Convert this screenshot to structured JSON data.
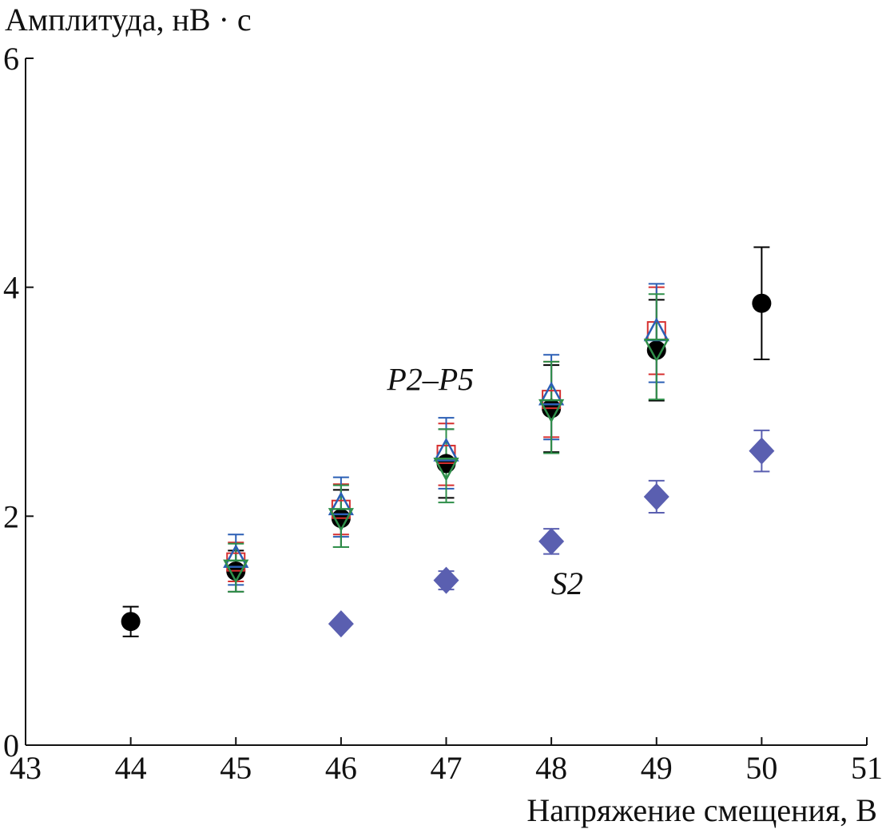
{
  "chart_data": {
    "type": "scatter",
    "title": "",
    "xlabel": "Напряжение смещения, В",
    "ylabel": "Амплитуда, нВ · с",
    "xlim": [
      43,
      51
    ],
    "ylim": [
      0,
      6
    ],
    "xticks": [
      "43",
      "44",
      "45",
      "46",
      "47",
      "48",
      "49",
      "50",
      "51"
    ],
    "yticks": [
      "0",
      "2",
      "4",
      "6"
    ],
    "grid": false,
    "annotations": [
      {
        "text": "P2–P5",
        "x": 46.85,
        "y": 3.1
      },
      {
        "text": "S2",
        "x": 48.15,
        "y": 1.32
      }
    ],
    "series": [
      {
        "marker": "circle",
        "color": "#000000",
        "points": [
          {
            "x": 44,
            "y": 1.08,
            "err": 0.13
          },
          {
            "x": 45,
            "y": 1.52,
            "err": 0.18
          },
          {
            "x": 46,
            "y": 1.98,
            "err": 0.25
          },
          {
            "x": 47,
            "y": 2.46,
            "err": 0.3
          },
          {
            "x": 48,
            "y": 2.94,
            "err": 0.38
          },
          {
            "x": 49,
            "y": 3.45,
            "err": 0.44
          },
          {
            "x": 50,
            "y": 3.86,
            "err": 0.49
          }
        ]
      },
      {
        "marker": "square",
        "color": "#d62f2f",
        "points": [
          {
            "x": 45,
            "y": 1.6,
            "err": 0.17
          },
          {
            "x": 46,
            "y": 2.06,
            "err": 0.22
          },
          {
            "x": 47,
            "y": 2.54,
            "err": 0.27
          },
          {
            "x": 48,
            "y": 3.02,
            "err": 0.33
          },
          {
            "x": 49,
            "y": 3.62,
            "err": 0.38
          }
        ]
      },
      {
        "marker": "triangle-up",
        "color": "#2b5fb5",
        "points": [
          {
            "x": 45,
            "y": 1.62,
            "err": 0.22
          },
          {
            "x": 46,
            "y": 2.08,
            "err": 0.26
          },
          {
            "x": 47,
            "y": 2.55,
            "err": 0.31
          },
          {
            "x": 48,
            "y": 3.04,
            "err": 0.37
          },
          {
            "x": 49,
            "y": 3.6,
            "err": 0.43
          }
        ]
      },
      {
        "marker": "triangle-down",
        "color": "#2f8f4a",
        "points": [
          {
            "x": 45,
            "y": 1.55,
            "err": 0.21
          },
          {
            "x": 46,
            "y": 2.0,
            "err": 0.27
          },
          {
            "x": 47,
            "y": 2.44,
            "err": 0.32
          },
          {
            "x": 48,
            "y": 2.95,
            "err": 0.4
          },
          {
            "x": 49,
            "y": 3.48,
            "err": 0.46
          }
        ]
      },
      {
        "marker": "diamond",
        "color": "#5a5fb0",
        "points": [
          {
            "x": 46,
            "y": 1.06,
            "err": 0.03
          },
          {
            "x": 47,
            "y": 1.44,
            "err": 0.08
          },
          {
            "x": 48,
            "y": 1.78,
            "err": 0.11
          },
          {
            "x": 49,
            "y": 2.17,
            "err": 0.14
          },
          {
            "x": 50,
            "y": 2.57,
            "err": 0.18
          }
        ]
      }
    ]
  }
}
